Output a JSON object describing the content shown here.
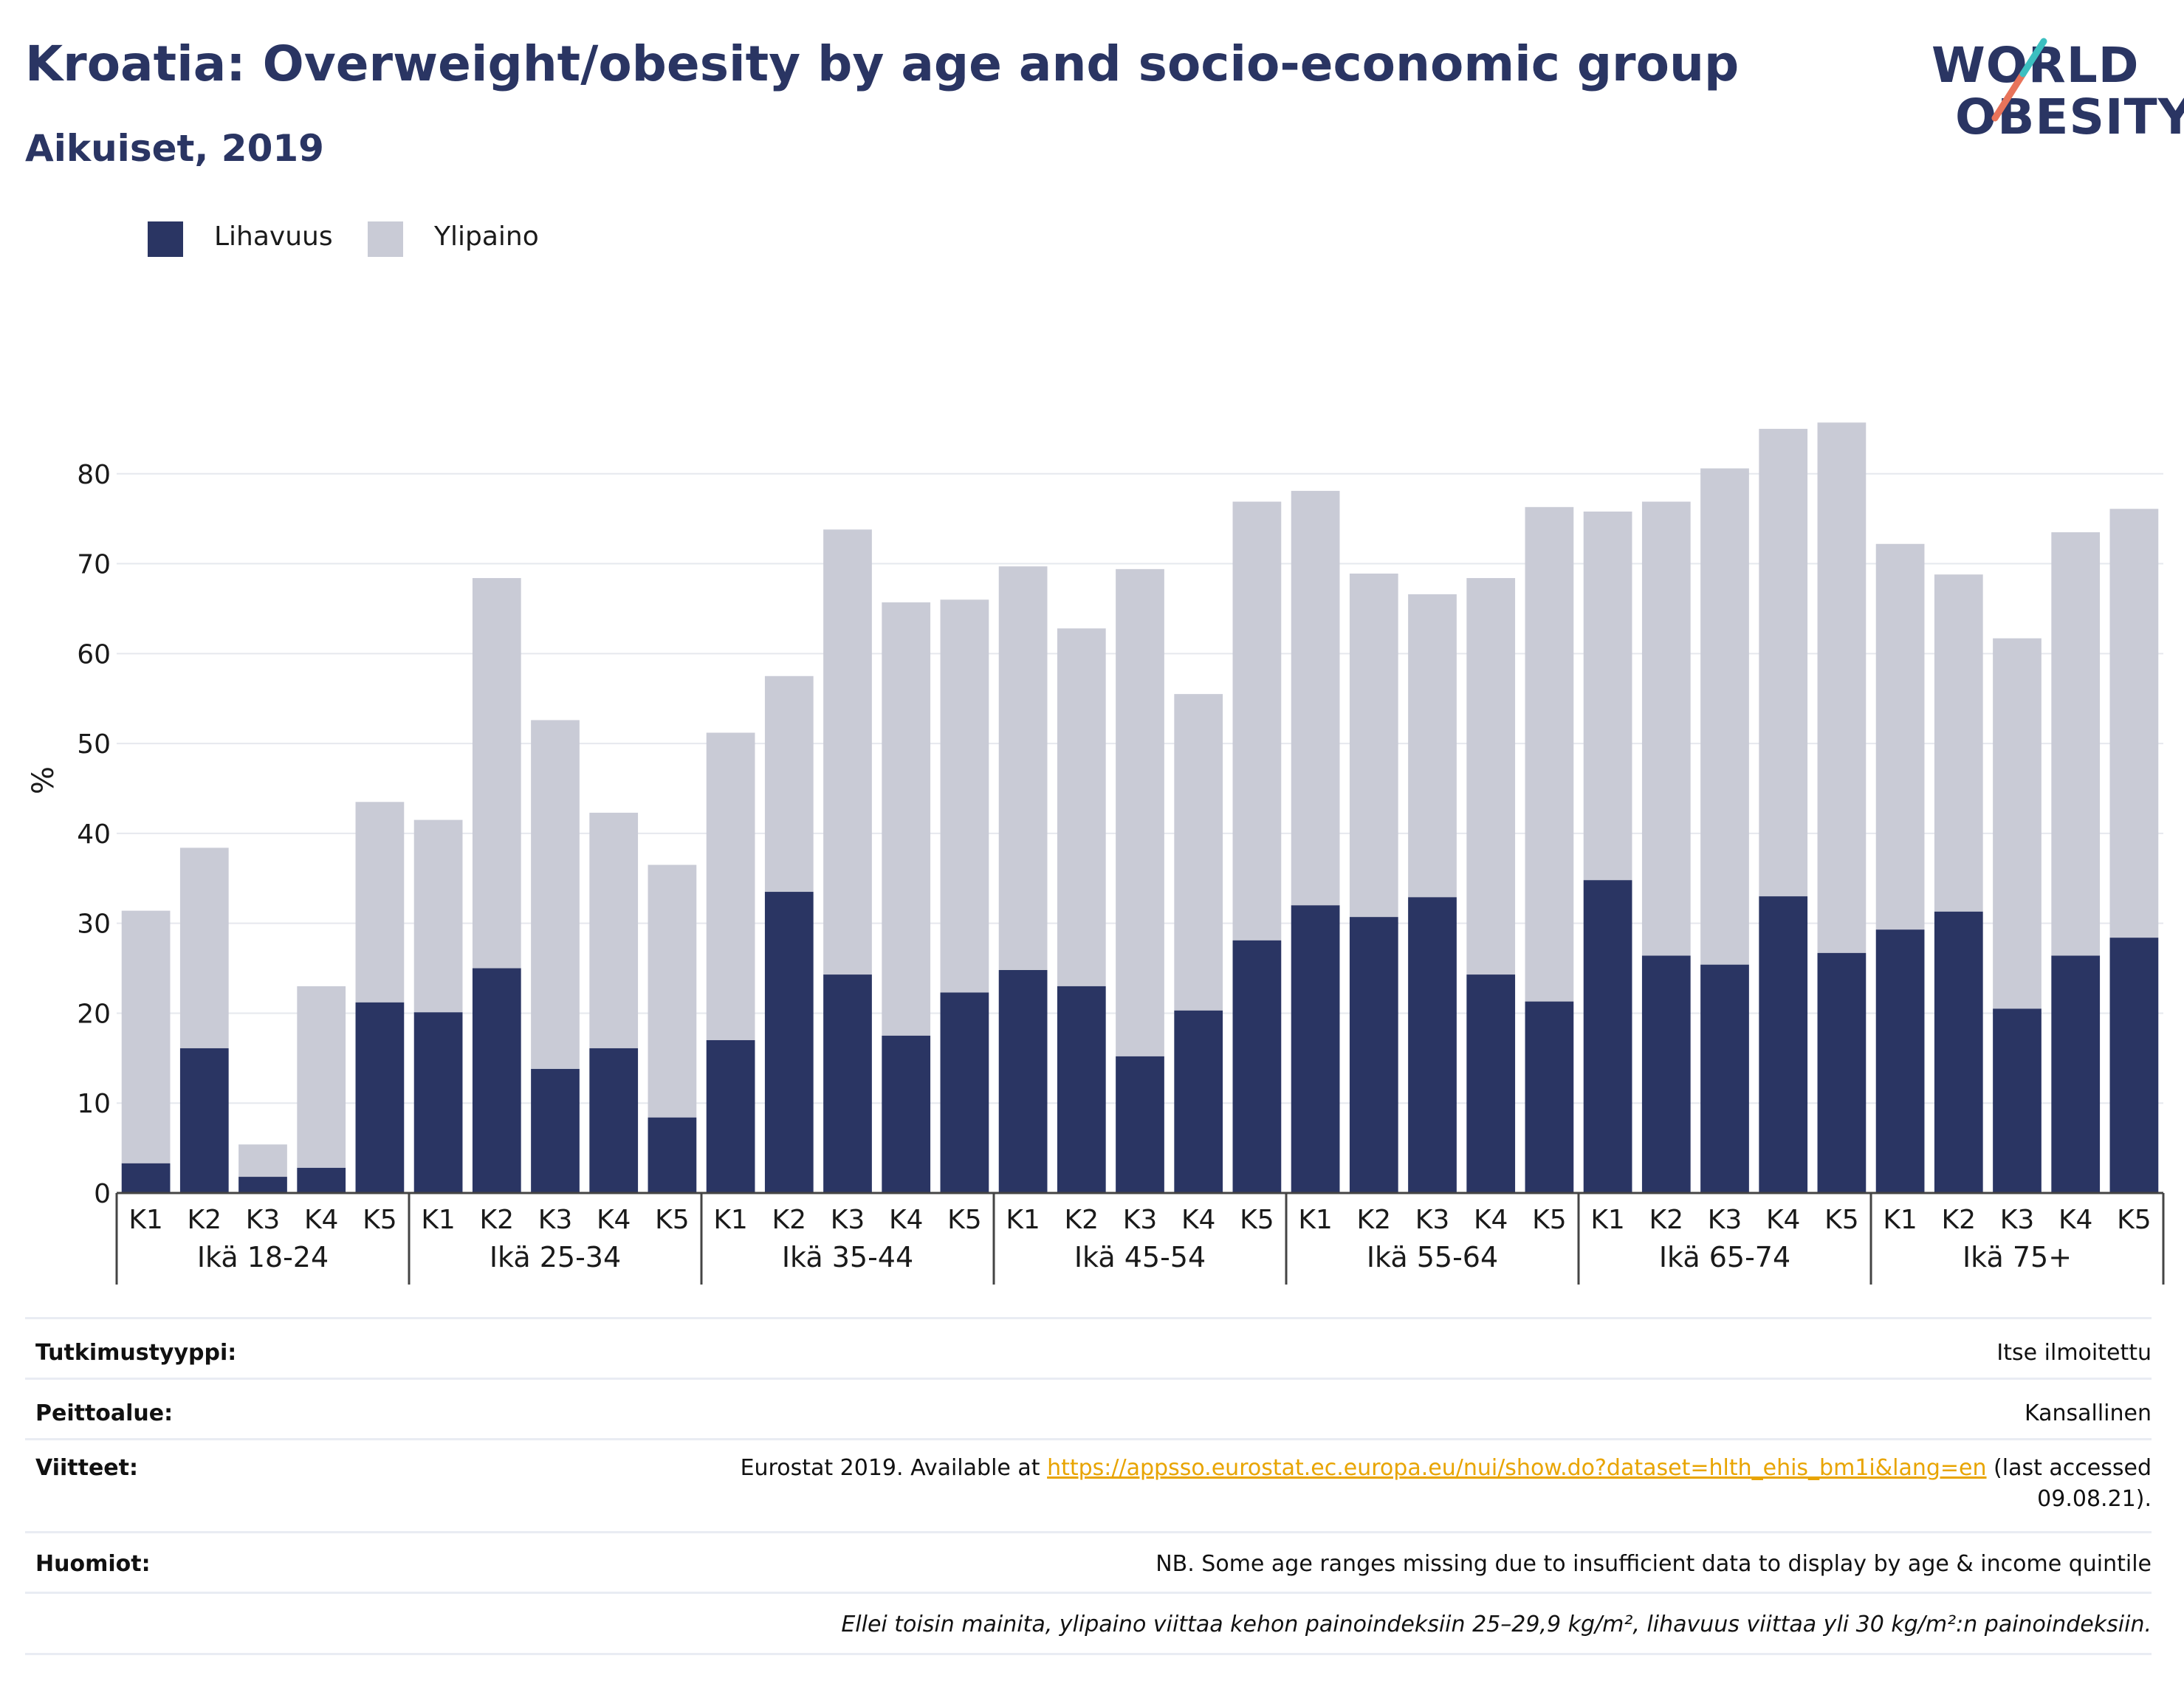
{
  "title": "Kroatia: Overweight/obesity by age and socio-economic group",
  "subtitle": "Aikuiset, 2019",
  "logo": {
    "line1": "WORLD",
    "line2": "OBESITY",
    "colors": {
      "text": "#2a3563",
      "teal": "#3cbfc0",
      "coral": "#e8735a"
    }
  },
  "legend": [
    {
      "label": "Lihavuus",
      "color": "#2a3563"
    },
    {
      "label": "Ylipaino",
      "color": "#c9cbd6"
    }
  ],
  "chart_data": {
    "type": "bar",
    "stacked": true,
    "ylabel": "%",
    "ylim": [
      0,
      90
    ],
    "yticks": [
      0,
      10,
      20,
      30,
      40,
      50,
      60,
      70,
      80
    ],
    "grid": true,
    "legend_position": "top-left",
    "groups": [
      {
        "label": "Ikä 18-24",
        "categories": [
          "K1",
          "K2",
          "K3",
          "K4",
          "K5"
        ],
        "obesity": [
          3.3,
          16.1,
          1.8,
          2.8,
          21.2
        ],
        "total": [
          31.4,
          38.4,
          5.4,
          23.0,
          43.5
        ]
      },
      {
        "label": "Ikä 25-34",
        "categories": [
          "K1",
          "K2",
          "K3",
          "K4",
          "K5"
        ],
        "obesity": [
          20.1,
          25.0,
          13.8,
          16.1,
          8.4
        ],
        "total": [
          41.5,
          68.4,
          52.6,
          42.3,
          36.5
        ]
      },
      {
        "label": "Ikä 35-44",
        "categories": [
          "K1",
          "K2",
          "K3",
          "K4",
          "K5"
        ],
        "obesity": [
          17.0,
          33.5,
          24.3,
          17.5,
          22.3
        ],
        "total": [
          51.2,
          57.5,
          73.8,
          65.7,
          66.0
        ]
      },
      {
        "label": "Ikä 45-54",
        "categories": [
          "K1",
          "K2",
          "K3",
          "K4",
          "K5"
        ],
        "obesity": [
          24.8,
          23.0,
          15.2,
          20.3,
          28.1
        ],
        "total": [
          69.7,
          62.8,
          69.4,
          55.5,
          76.9
        ]
      },
      {
        "label": "Ikä 55-64",
        "categories": [
          "K1",
          "K2",
          "K3",
          "K4",
          "K5"
        ],
        "obesity": [
          32.0,
          30.7,
          32.9,
          24.3,
          21.3
        ],
        "total": [
          78.1,
          68.9,
          66.6,
          68.4,
          76.3
        ]
      },
      {
        "label": "Ikä 65-74",
        "categories": [
          "K1",
          "K2",
          "K3",
          "K4",
          "K5"
        ],
        "obesity": [
          34.8,
          26.4,
          25.4,
          33.0,
          26.7
        ],
        "total": [
          75.8,
          76.9,
          80.6,
          85.0,
          85.7
        ]
      },
      {
        "label": "Ikä 75+",
        "categories": [
          "K1",
          "K2",
          "K3",
          "K4",
          "K5"
        ],
        "obesity": [
          29.3,
          31.3,
          20.5,
          26.4,
          28.4
        ],
        "total": [
          72.2,
          68.8,
          61.7,
          73.5,
          76.1
        ]
      }
    ],
    "series": [
      {
        "name": "Lihavuus",
        "key": "obesity",
        "color": "#2a3563"
      },
      {
        "name": "Ylipaino",
        "key": "overweight",
        "color": "#c9cbd6"
      }
    ]
  },
  "meta": {
    "study_type": {
      "label": "Tutkimustyyppi:",
      "value": "Itse ilmoitettu"
    },
    "coverage": {
      "label": "Peittoalue:",
      "value": "Kansallinen"
    },
    "references": {
      "label": "Viitteet:",
      "prefix": "Eurostat 2019. Available at ",
      "link": "https://appsso.eurostat.ec.europa.eu/nui/show.do?dataset=hlth_ehis_bm1i&lang=en",
      "suffix1": " (last accessed",
      "suffix2": "09.08.21)."
    },
    "notes": {
      "label": "Huomiot:",
      "value": "NB. Some age ranges missing due to insufficient data to display by age & income quintile"
    },
    "definition": "Ellei toisin mainita, ylipaino viittaa kehon painoindeksiin 25–29,9 kg/m², lihavuus viittaa yli 30 kg/m²:n painoindeksiin."
  }
}
